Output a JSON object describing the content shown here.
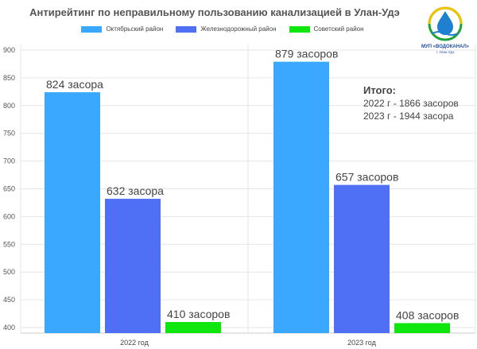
{
  "title": "Антирейтинг по неправильному пользованию канализацией в Улан-Удэ",
  "logo": {
    "name": "МУП «ВОДОКАНАЛ»",
    "city": "г. Улан-Удэ"
  },
  "summary": {
    "title": "Итого:",
    "lines": [
      "2022 г - 1866 засоров",
      "2023 г - 1944 засора"
    ]
  },
  "colors": {
    "series": [
      "#3aa8ff",
      "#4f6ff5",
      "#0ee60e"
    ],
    "grid": "#e6e6e6",
    "text": "#444444"
  },
  "chart_data": {
    "type": "bar",
    "categories": [
      "2022 год",
      "2023 год"
    ],
    "series": [
      {
        "name": "Октябрьский район",
        "values": [
          824,
          879
        ],
        "labels": [
          "824 засора",
          "879 засоров"
        ]
      },
      {
        "name": "Железнодорожный район",
        "values": [
          632,
          657
        ],
        "labels": [
          "632 засора",
          "657 засоров"
        ]
      },
      {
        "name": "Советский район",
        "values": [
          410,
          408
        ],
        "labels": [
          "410 засоров",
          "408 засоров"
        ]
      }
    ],
    "ylim": [
      390,
      910
    ],
    "yticks": [
      400,
      450,
      500,
      550,
      600,
      650,
      700,
      750,
      800,
      850,
      900
    ],
    "grid": true,
    "legend": "top-center"
  }
}
